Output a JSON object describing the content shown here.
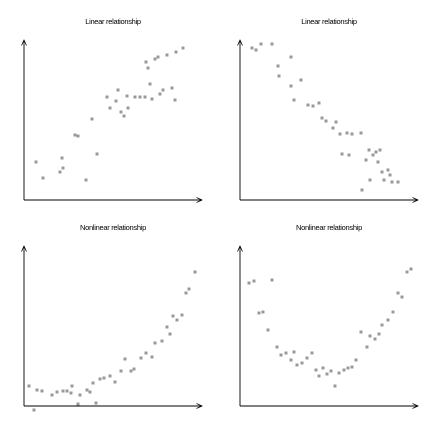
{
  "chart_data": [
    {
      "type": "scatter",
      "title": "Linear relationship",
      "color": "#999999",
      "xlim": [
        0,
        178
      ],
      "ylim": [
        0,
        160
      ],
      "x": [
        12,
        19,
        36,
        38,
        39,
        51,
        54,
        62,
        68,
        73,
        83,
        86,
        92,
        94,
        97,
        100,
        103,
        104,
        111,
        116,
        121,
        122,
        124,
        126,
        128,
        131,
        134,
        136,
        139,
        143,
        148,
        151,
        152,
        159
      ],
      "values": [
        38,
        22,
        28,
        42,
        32,
        65,
        64,
        20,
        81,
        46,
        103,
        92,
        99,
        110,
        88,
        84,
        104,
        92,
        103,
        103,
        103,
        138,
        132,
        116,
        101,
        141,
        143,
        106,
        110,
        145,
        112,
        100,
        148,
        152
      ]
    },
    {
      "type": "scatter",
      "title": "Linear relationship",
      "color": "#999999",
      "xlim": [
        0,
        178
      ],
      "ylim": [
        0,
        160
      ],
      "x": [
        12,
        16,
        21,
        32,
        38,
        39,
        51,
        51,
        54,
        61,
        68,
        73,
        79,
        82,
        86,
        93,
        96,
        100,
        102,
        107,
        109,
        112,
        121,
        122,
        126,
        129,
        130,
        133,
        136,
        138,
        140,
        142,
        144,
        148,
        150,
        152,
        158
      ],
      "values": [
        152,
        150,
        156,
        156,
        134,
        124,
        143,
        114,
        100,
        120,
        95,
        94,
        97,
        82,
        79,
        72,
        78,
        66,
        46,
        67,
        45,
        66,
        67,
        10,
        40,
        50,
        20,
        45,
        48,
        38,
        50,
        28,
        20,
        30,
        25,
        18,
        18
      ]
    },
    {
      "type": "scatter",
      "title": "Nonlinear relationship",
      "color": "#999999",
      "xlim": [
        0,
        178
      ],
      "ylim": [
        0,
        160
      ],
      "x": [
        5,
        10,
        13,
        18,
        28,
        33,
        39,
        43,
        47,
        48,
        54,
        56,
        63,
        66,
        72,
        69,
        76,
        80,
        86,
        91,
        97,
        101,
        107,
        110,
        117,
        122,
        128,
        131,
        138,
        143,
        146,
        149,
        153,
        158,
        162,
        165,
        171
      ],
      "values": [
        20,
        -4,
        16,
        15,
        11,
        14,
        15,
        15,
        13,
        20,
        2,
        11,
        16,
        14,
        3,
        23,
        27,
        28,
        30,
        24,
        35,
        47,
        35,
        37,
        48,
        53,
        49,
        63,
        65,
        79,
        72,
        90,
        86,
        91,
        113,
        117,
        134
      ]
    },
    {
      "type": "scatter",
      "title": "Nonlinear relationship",
      "color": "#999999",
      "xlim": [
        0,
        178
      ],
      "ylim": [
        0,
        160
      ],
      "x": [
        9,
        14,
        19,
        23,
        28,
        32,
        37,
        41,
        46,
        51,
        54,
        57,
        62,
        67,
        72,
        76,
        79,
        83,
        87,
        91,
        95,
        99,
        104,
        108,
        112,
        116,
        121,
        127,
        130,
        135,
        139,
        142,
        148,
        153,
        158,
        162,
        167,
        171
      ],
      "values": [
        123,
        125,
        93,
        94,
        76,
        126,
        59,
        51,
        53,
        46,
        54,
        41,
        43,
        48,
        53,
        36,
        30,
        38,
        32,
        35,
        20,
        33,
        36,
        38,
        39,
        46,
        74,
        59,
        70,
        67,
        72,
        81,
        86,
        94,
        113,
        109,
        134,
        137
      ]
    }
  ]
}
